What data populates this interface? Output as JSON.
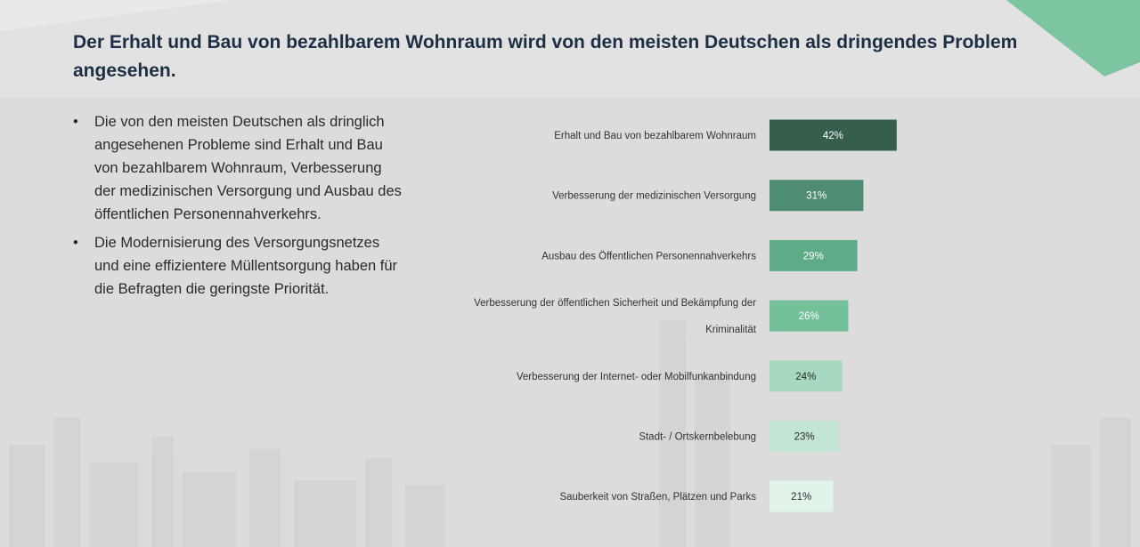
{
  "title": "Der Erhalt und Bau von bezahlbarem Wohnraum wird von den meisten Deutschen als dringendes Problem angesehen.",
  "bullets": [
    "Die von den meisten Deutschen als dringlich angesehenen Probleme sind Erhalt und Bau von bezahlbarem Wohnraum, Verbesserung der medizinischen Versorgung und Ausbau des öffentlichen Personennahverkehrs.",
    "Die Modernisierung des Versorgungsnetzes und eine effizientere Müllentsorgung haben für die Befragten die geringste Priorität."
  ],
  "colors": {
    "accent": "#7dc5a0",
    "title": "#1e2f45",
    "bar_colors": [
      "#355e4d",
      "#4f8d72",
      "#5fab88",
      "#73c09b",
      "#a6d9c0",
      "#c2e6d3",
      "#e2f3ea"
    ],
    "label_light": "#ffffff",
    "label_dark": "#2b2b2b"
  },
  "chart_data": {
    "type": "bar",
    "orientation": "horizontal",
    "categories": [
      [
        "Erhalt und Bau von bezahlbarem Wohnraum"
      ],
      [
        "Verbesserung der medizinischen Versorgung"
      ],
      [
        "Ausbau des Öffentlichen Personennahverkehrs"
      ],
      [
        "Verbesserung der öffentlichen Sicherheit und Bekämpfung der",
        "Kriminalität"
      ],
      [
        "Verbesserung der Internet- oder Mobilfunkanbindung"
      ],
      [
        "Stadt- / Ortskernbelebung"
      ],
      [
        "Sauberkeit von Straßen, Plätzen und Parks"
      ]
    ],
    "values": [
      42,
      31,
      29,
      26,
      24,
      23,
      21
    ],
    "value_labels": [
      "42%",
      "31%",
      "29%",
      "26%",
      "24%",
      "23%",
      "21%"
    ],
    "unit": "%",
    "grid": false,
    "legend": "none"
  }
}
